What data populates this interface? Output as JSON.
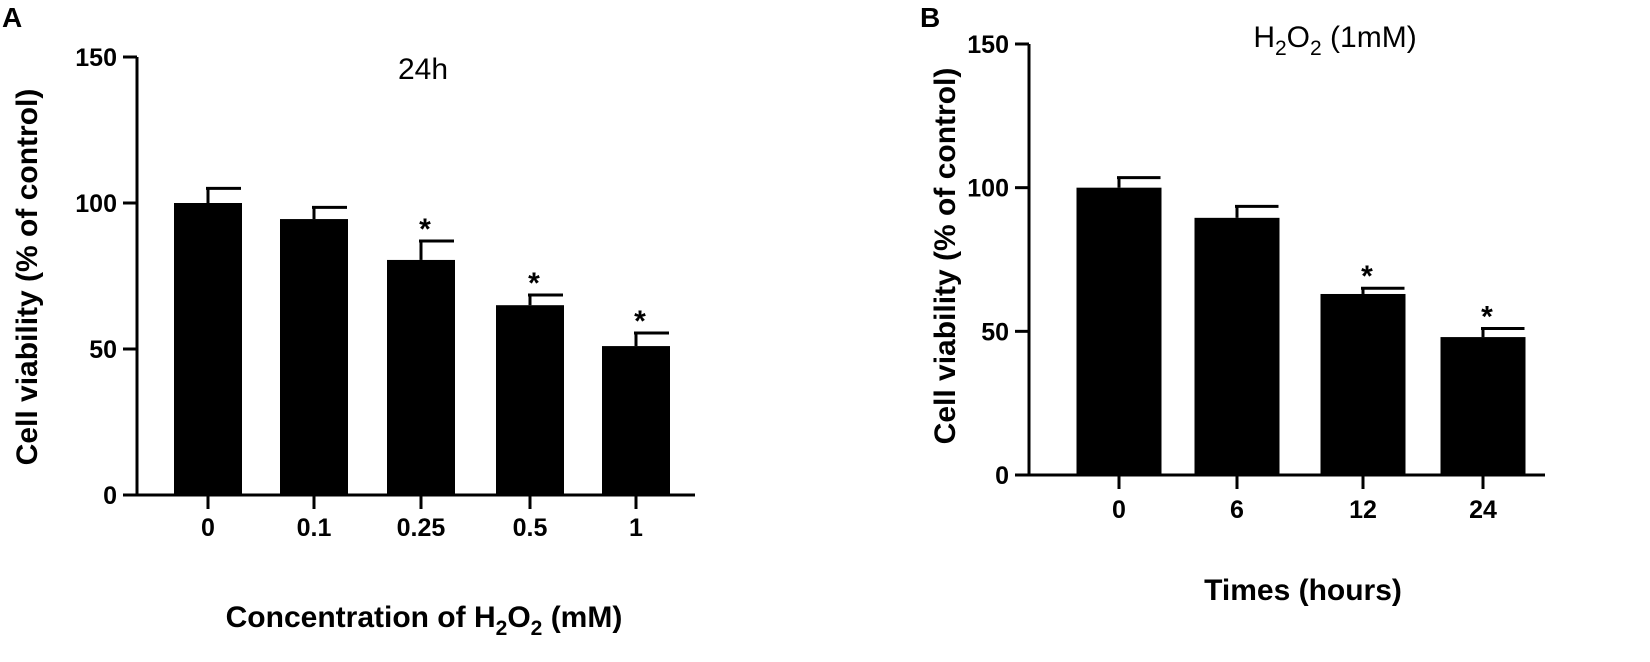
{
  "chart_data": [
    {
      "panel": "A",
      "type": "bar",
      "title": "24h",
      "xlabel": {
        "prefix": "Concentration of H",
        "sub1": "2",
        "mid": "O",
        "sub2": "2",
        "suffix": " (mM)"
      },
      "ylabel": "Cell viability (% of control)",
      "categories": [
        "0",
        "0.1",
        "0.25",
        "0.5",
        "1"
      ],
      "values": [
        100,
        94.5,
        80.5,
        65,
        51
      ],
      "errors": [
        5,
        4,
        6.5,
        3.5,
        4.5
      ],
      "significance": [
        "",
        "",
        "*",
        "*",
        "*"
      ],
      "ylim": [
        0,
        150
      ],
      "yticks": [
        0,
        50,
        100,
        150
      ],
      "grid": false,
      "bar_color": "#000000"
    },
    {
      "panel": "B",
      "type": "bar",
      "title": {
        "prefix": "H",
        "sub1": "2",
        "mid": "O",
        "sub2": "2",
        "suffix": " (1mM)"
      },
      "xlabel": "Times (hours)",
      "ylabel": "Cell viability (% of control)",
      "categories": [
        "0",
        "6",
        "12",
        "24"
      ],
      "values": [
        100,
        89.5,
        63,
        48
      ],
      "errors": [
        3.5,
        4,
        2,
        3
      ],
      "significance": [
        "",
        "",
        "*",
        "*"
      ],
      "ylim": [
        0,
        150
      ],
      "yticks": [
        0,
        50,
        100,
        150
      ],
      "grid": false,
      "bar_color": "#000000"
    }
  ]
}
